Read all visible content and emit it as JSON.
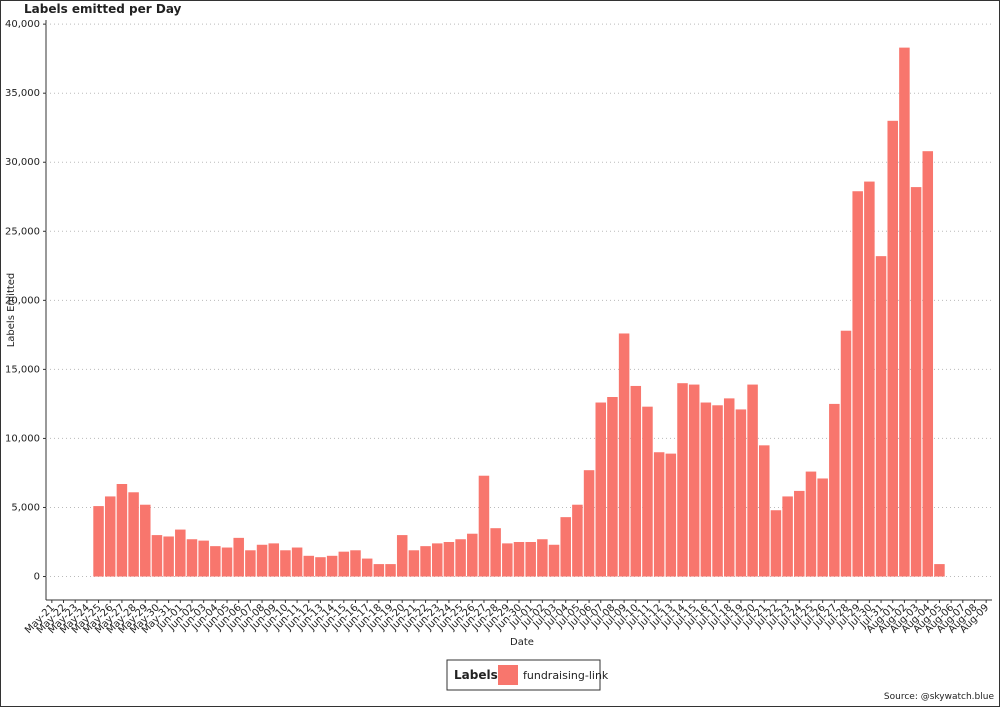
{
  "chart_data": {
    "type": "bar",
    "title": "Labels emitted per Day",
    "x_label": "Date",
    "y_label": "Labels Emitted",
    "categories": [
      "May-21",
      "May-22",
      "May-23",
      "May-24",
      "May-25",
      "May-26",
      "May-27",
      "May-28",
      "May-29",
      "May-30",
      "May-31",
      "Jun-01",
      "Jun-02",
      "Jun-03",
      "Jun-04",
      "Jun-05",
      "Jun-06",
      "Jun-07",
      "Jun-08",
      "Jun-09",
      "Jun-10",
      "Jun-11",
      "Jun-12",
      "Jun-13",
      "Jun-14",
      "Jun-15",
      "Jun-16",
      "Jun-17",
      "Jun-18",
      "Jun-19",
      "Jun-20",
      "Jun-21",
      "Jun-22",
      "Jun-23",
      "Jun-24",
      "Jun-25",
      "Jun-26",
      "Jun-27",
      "Jun-28",
      "Jun-29",
      "Jun-30",
      "Jul-01",
      "Jul-02",
      "Jul-03",
      "Jul-04",
      "Jul-05",
      "Jul-06",
      "Jul-07",
      "Jul-08",
      "Jul-09",
      "Jul-10",
      "Jul-11",
      "Jul-12",
      "Jul-13",
      "Jul-14",
      "Jul-15",
      "Jul-16",
      "Jul-17",
      "Jul-18",
      "Jul-19",
      "Jul-20",
      "Jul-21",
      "Jul-22",
      "Jul-23",
      "Jul-24",
      "Jul-25",
      "Jul-26",
      "Jul-27",
      "Jul-28",
      "Jul-29",
      "Jul-30",
      "Jul-31",
      "Aug-01",
      "Aug-02",
      "Aug-03",
      "Aug-04",
      "Aug-05",
      "Aug-06",
      "Aug-07",
      "Aug-08",
      "Aug-09"
    ],
    "series": [
      {
        "name": "fundraising-link",
        "color": "#f8766d",
        "values": [
          null,
          null,
          null,
          null,
          5100,
          5800,
          6700,
          6100,
          5200,
          3000,
          2900,
          3400,
          2700,
          2600,
          2200,
          2100,
          2800,
          1900,
          2300,
          2400,
          1900,
          2100,
          1500,
          1400,
          1500,
          1800,
          1900,
          1300,
          900,
          900,
          3000,
          1900,
          2200,
          2400,
          2500,
          2700,
          3100,
          7300,
          3500,
          2400,
          2500,
          2500,
          2700,
          2300,
          4300,
          5200,
          7700,
          12600,
          13000,
          17600,
          13800,
          12300,
          9000,
          8900,
          14000,
          13900,
          12600,
          12400,
          12900,
          12100,
          13900,
          9500,
          4800,
          5800,
          6200,
          7600,
          7100,
          12500,
          17800,
          27900,
          28600,
          23200,
          33000,
          38300,
          28200,
          30800,
          900,
          null,
          null,
          null,
          null
        ]
      }
    ],
    "ylim": [
      -1700,
      40300
    ],
    "yticks": [
      0,
      {
        "value": 5000,
        "label": "5,000"
      },
      {
        "value": 10000,
        "label": "10,000"
      },
      {
        "value": 15000,
        "label": "15,000"
      },
      {
        "value": 20000,
        "label": "20,000"
      },
      {
        "value": 25000,
        "label": "25,000"
      },
      {
        "value": 30000,
        "label": "30,000"
      },
      {
        "value": 35000,
        "label": "35,000"
      },
      {
        "value": 40000,
        "label": "40,000"
      }
    ],
    "grid": true,
    "legend_title": "Labels",
    "legend_position": "bottom",
    "source": "Source: @skywatch.blue"
  }
}
